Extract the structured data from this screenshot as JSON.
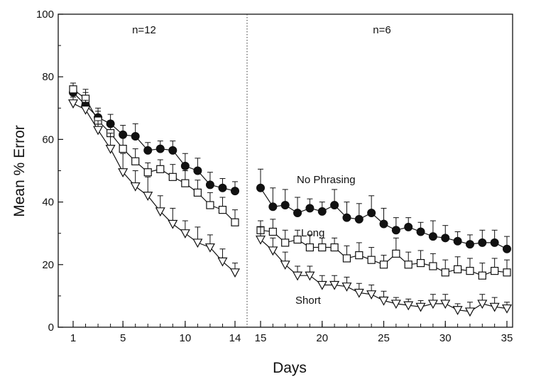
{
  "chart_data": {
    "type": "line",
    "xlabel": "Days",
    "ylabel": "Mean % Error",
    "ylim": [
      0,
      100
    ],
    "yticks": [
      0,
      20,
      40,
      60,
      80,
      100
    ],
    "segments": [
      {
        "annotation": "n=12",
        "xticks": [
          1,
          5,
          10,
          14
        ],
        "x_range": [
          1,
          14
        ]
      },
      {
        "annotation": "n=6",
        "xticks": [
          15,
          20,
          25,
          30,
          35
        ],
        "x_range": [
          15,
          35
        ]
      }
    ],
    "grid": false,
    "series": [
      {
        "name": "No Phrasing",
        "marker": "filled-circle",
        "points": [
          {
            "x": 1,
            "y": 75,
            "err": 2
          },
          {
            "x": 2,
            "y": 71,
            "err": 4
          },
          {
            "x": 3,
            "y": 67,
            "err": 3
          },
          {
            "x": 4,
            "y": 65,
            "err": 3
          },
          {
            "x": 5,
            "y": 61.5,
            "err": 3
          },
          {
            "x": 6,
            "y": 61,
            "err": 4
          },
          {
            "x": 7,
            "y": 56.5,
            "err": 2.5
          },
          {
            "x": 8,
            "y": 57,
            "err": 2.5
          },
          {
            "x": 9,
            "y": 56.5,
            "err": 3
          },
          {
            "x": 10,
            "y": 51.5,
            "err": 4
          },
          {
            "x": 11,
            "y": 50,
            "err": 4
          },
          {
            "x": 12,
            "y": 45.5,
            "err": 4
          },
          {
            "x": 13,
            "y": 44.5,
            "err": 3
          },
          {
            "x": 14,
            "y": 43.5,
            "err": 3
          },
          {
            "x": 15,
            "y": 44.5,
            "err": 6
          },
          {
            "x": 16,
            "y": 38.5,
            "err": 6
          },
          {
            "x": 17,
            "y": 39,
            "err": 5
          },
          {
            "x": 18,
            "y": 36.5,
            "err": 5
          },
          {
            "x": 19,
            "y": 38,
            "err": 3
          },
          {
            "x": 20,
            "y": 37,
            "err": 3
          },
          {
            "x": 21,
            "y": 39,
            "err": 5
          },
          {
            "x": 22,
            "y": 35,
            "err": 5
          },
          {
            "x": 23,
            "y": 34.5,
            "err": 5
          },
          {
            "x": 24,
            "y": 36.5,
            "err": 5.5
          },
          {
            "x": 25,
            "y": 33,
            "err": 5
          },
          {
            "x": 26,
            "y": 31,
            "err": 4
          },
          {
            "x": 27,
            "y": 32,
            "err": 3
          },
          {
            "x": 28,
            "y": 30.5,
            "err": 3
          },
          {
            "x": 29,
            "y": 29,
            "err": 5
          },
          {
            "x": 30,
            "y": 28.5,
            "err": 4
          },
          {
            "x": 31,
            "y": 27.5,
            "err": 3
          },
          {
            "x": 32,
            "y": 26.5,
            "err": 3
          },
          {
            "x": 33,
            "y": 27,
            "err": 4
          },
          {
            "x": 34,
            "y": 27,
            "err": 4
          },
          {
            "x": 35,
            "y": 25,
            "err": 4
          }
        ]
      },
      {
        "name": "Long",
        "marker": "open-square",
        "points": [
          {
            "x": 1,
            "y": 76,
            "err": 2
          },
          {
            "x": 2,
            "y": 73,
            "err": 3
          },
          {
            "x": 3,
            "y": 66,
            "err": 3
          },
          {
            "x": 4,
            "y": 62,
            "err": 4
          },
          {
            "x": 5,
            "y": 57,
            "err": 4
          },
          {
            "x": 6,
            "y": 53,
            "err": 4
          },
          {
            "x": 7,
            "y": 49.5,
            "err": 3
          },
          {
            "x": 8,
            "y": 50.5,
            "err": 3
          },
          {
            "x": 9,
            "y": 48,
            "err": 4
          },
          {
            "x": 10,
            "y": 46,
            "err": 4
          },
          {
            "x": 11,
            "y": 43,
            "err": 4
          },
          {
            "x": 12,
            "y": 39,
            "err": 4
          },
          {
            "x": 13,
            "y": 37.5,
            "err": 4
          },
          {
            "x": 14,
            "y": 33.5,
            "err": 4
          },
          {
            "x": 15,
            "y": 31,
            "err": 3
          },
          {
            "x": 16,
            "y": 30.5,
            "err": 4
          },
          {
            "x": 17,
            "y": 27,
            "err": 4
          },
          {
            "x": 18,
            "y": 28,
            "err": 3
          },
          {
            "x": 19,
            "y": 25.5,
            "err": 4
          },
          {
            "x": 20,
            "y": 25.5,
            "err": 3
          },
          {
            "x": 21,
            "y": 25.5,
            "err": 3
          },
          {
            "x": 22,
            "y": 22,
            "err": 4
          },
          {
            "x": 23,
            "y": 23,
            "err": 4
          },
          {
            "x": 24,
            "y": 21.5,
            "err": 4
          },
          {
            "x": 25,
            "y": 20,
            "err": 3
          },
          {
            "x": 26,
            "y": 23.5,
            "err": 5
          },
          {
            "x": 27,
            "y": 20,
            "err": 4
          },
          {
            "x": 28,
            "y": 20.5,
            "err": 4
          },
          {
            "x": 29,
            "y": 19.5,
            "err": 4
          },
          {
            "x": 30,
            "y": 17.5,
            "err": 4
          },
          {
            "x": 31,
            "y": 18.5,
            "err": 4
          },
          {
            "x": 32,
            "y": 18,
            "err": 4
          },
          {
            "x": 33,
            "y": 16.5,
            "err": 4
          },
          {
            "x": 34,
            "y": 18,
            "err": 4
          },
          {
            "x": 35,
            "y": 17.5,
            "err": 4
          }
        ]
      },
      {
        "name": "Short",
        "marker": "open-triangle-down",
        "points": [
          {
            "x": 1,
            "y": 71.5,
            "err": 2
          },
          {
            "x": 2,
            "y": 69.5,
            "err": 3
          },
          {
            "x": 3,
            "y": 63,
            "err": 3
          },
          {
            "x": 4,
            "y": 57,
            "err": 5
          },
          {
            "x": 5,
            "y": 49.5,
            "err": 6
          },
          {
            "x": 6,
            "y": 45,
            "err": 5
          },
          {
            "x": 7,
            "y": 42,
            "err": 6
          },
          {
            "x": 8,
            "y": 37,
            "err": 5
          },
          {
            "x": 9,
            "y": 33,
            "err": 5
          },
          {
            "x": 10,
            "y": 30,
            "err": 4
          },
          {
            "x": 11,
            "y": 27,
            "err": 5
          },
          {
            "x": 12,
            "y": 25.5,
            "err": 4
          },
          {
            "x": 13,
            "y": 21,
            "err": 4
          },
          {
            "x": 14,
            "y": 17.5,
            "err": 3
          },
          {
            "x": 15,
            "y": 28,
            "err": 4
          },
          {
            "x": 16,
            "y": 24.5,
            "err": 4
          },
          {
            "x": 17,
            "y": 20,
            "err": 4
          },
          {
            "x": 18,
            "y": 16.5,
            "err": 3
          },
          {
            "x": 19,
            "y": 16.5,
            "err": 3
          },
          {
            "x": 20,
            "y": 13.5,
            "err": 3
          },
          {
            "x": 21,
            "y": 13.5,
            "err": 3
          },
          {
            "x": 22,
            "y": 13,
            "err": 3
          },
          {
            "x": 23,
            "y": 11,
            "err": 3
          },
          {
            "x": 24,
            "y": 10.5,
            "err": 3
          },
          {
            "x": 25,
            "y": 8.5,
            "err": 3
          },
          {
            "x": 26,
            "y": 7.5,
            "err": 2
          },
          {
            "x": 27,
            "y": 7,
            "err": 2
          },
          {
            "x": 28,
            "y": 6.5,
            "err": 2
          },
          {
            "x": 29,
            "y": 7.5,
            "err": 3
          },
          {
            "x": 30,
            "y": 7.5,
            "err": 3
          },
          {
            "x": 31,
            "y": 5.5,
            "err": 2
          },
          {
            "x": 32,
            "y": 5,
            "err": 3
          },
          {
            "x": 33,
            "y": 7.5,
            "err": 3
          },
          {
            "x": 34,
            "y": 6.5,
            "err": 3
          },
          {
            "x": 35,
            "y": 6,
            "err": 2
          }
        ]
      }
    ]
  }
}
